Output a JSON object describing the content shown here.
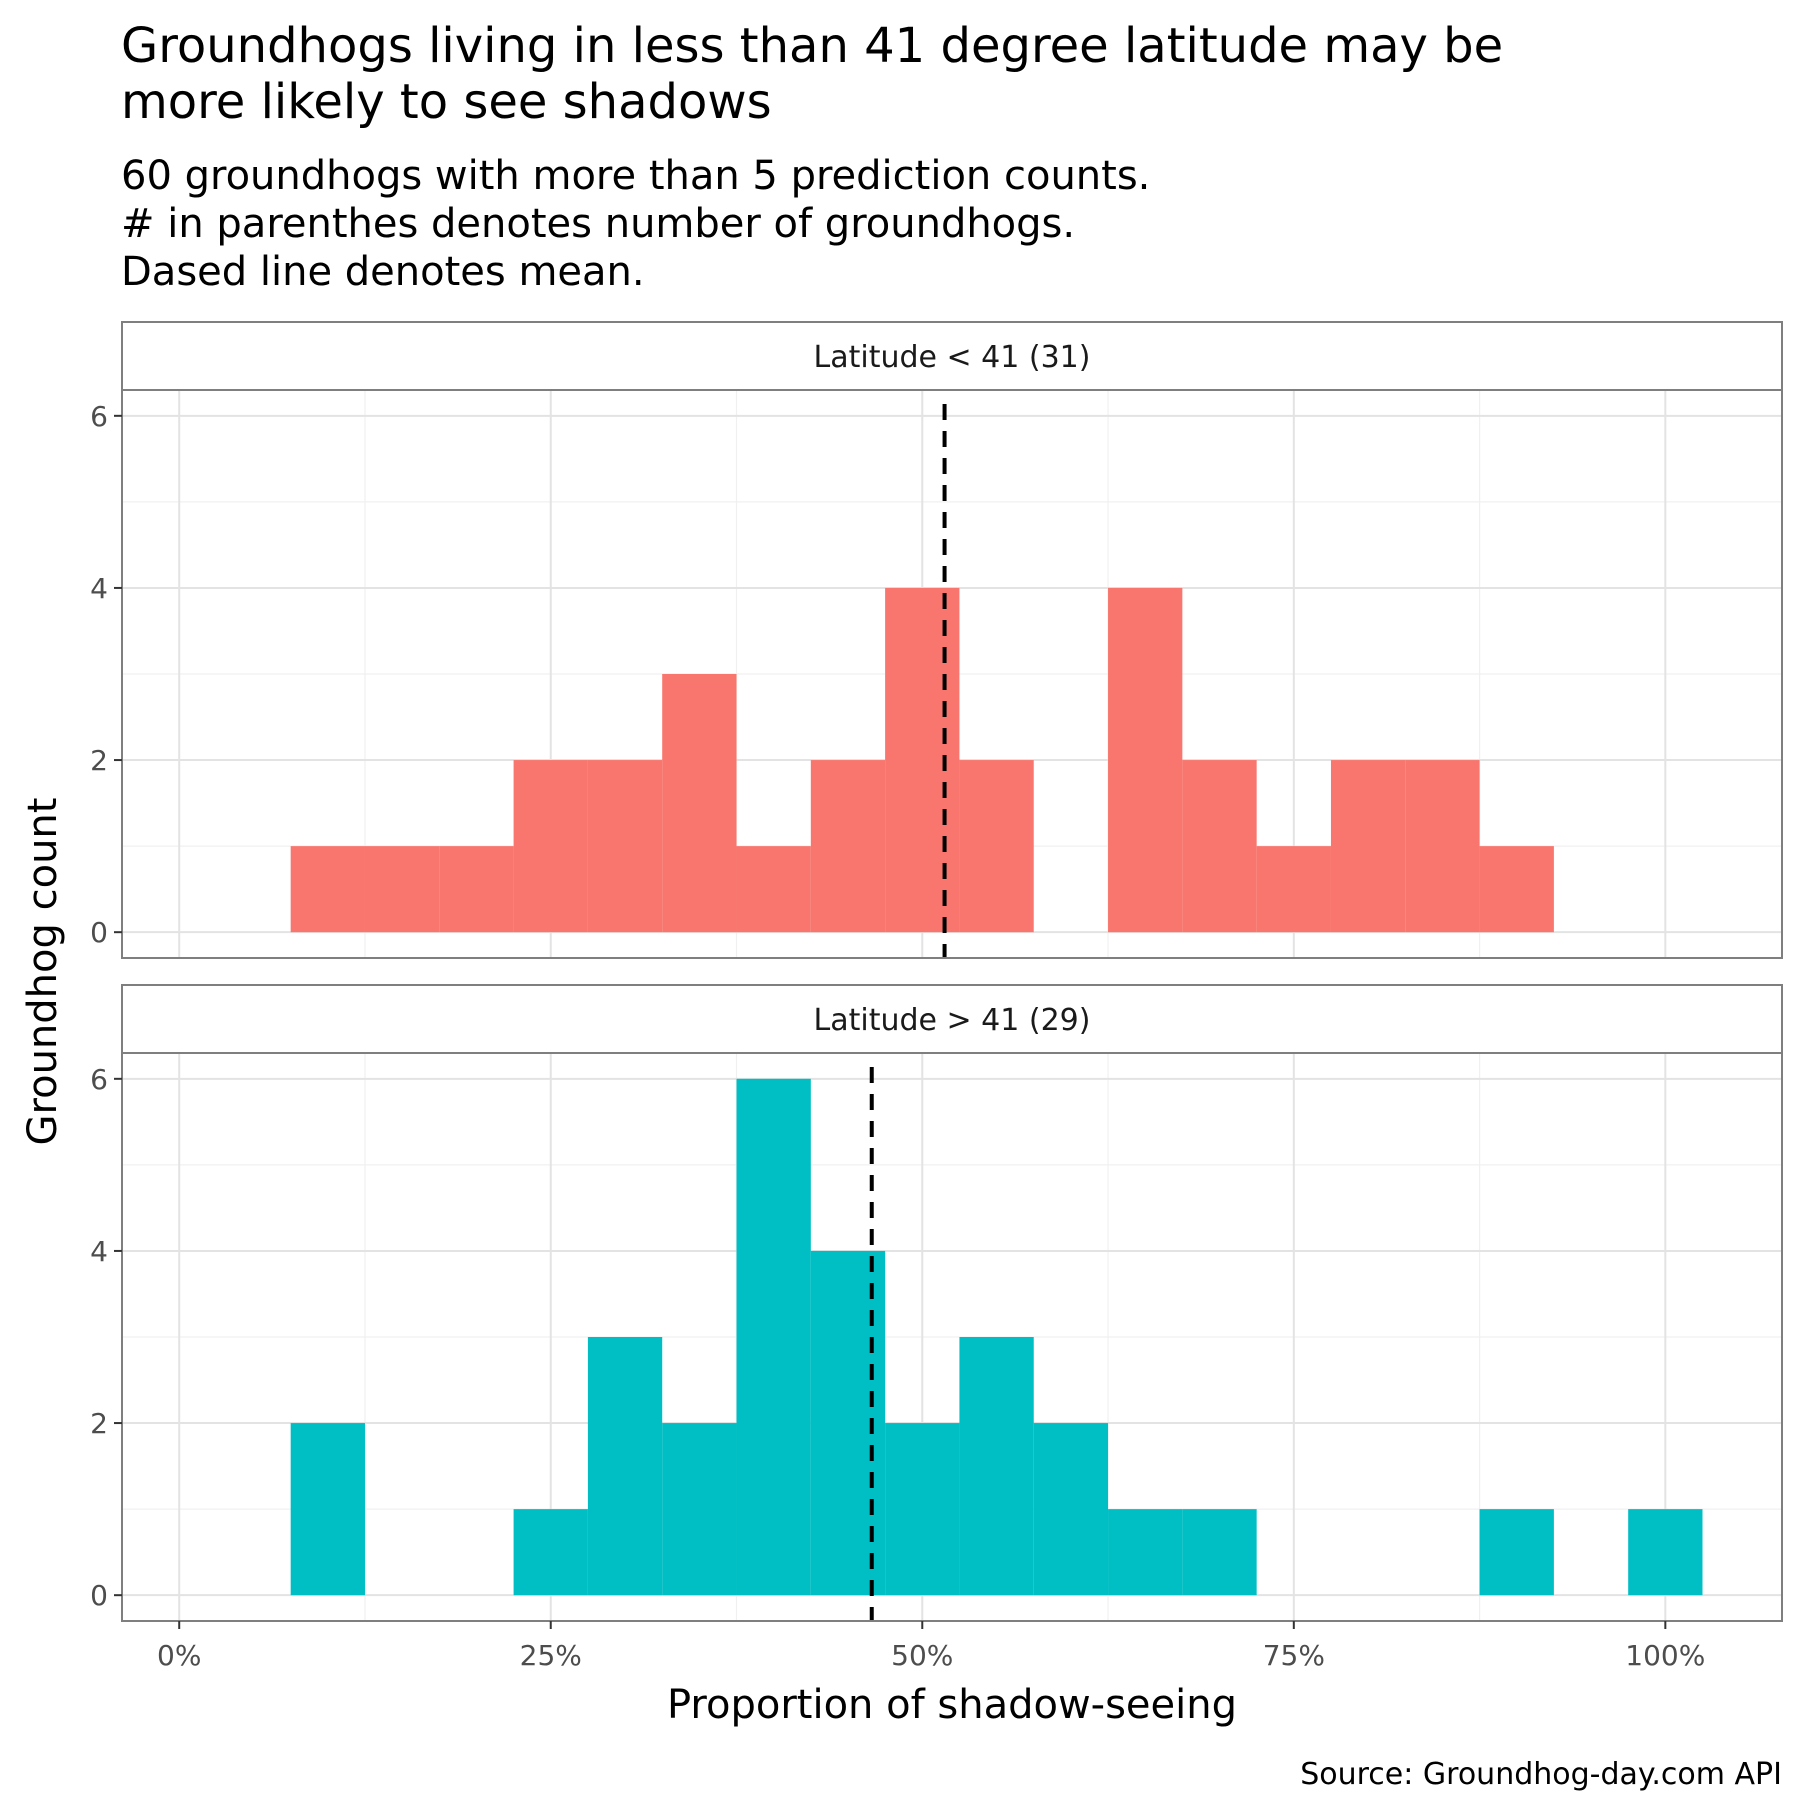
{
  "chart_data": {
    "type": "bar",
    "title_lines": [
      "Groundhogs living in less than 41 degree latitude may be",
      "more likely to see shadows"
    ],
    "subtitle_lines": [
      "60 groundhogs with more than 5 prediction counts.",
      "# in parenthes denotes number of groundhogs.",
      "Dased line denotes mean."
    ],
    "xlabel": "Proportion of shadow-seeing",
    "ylabel": "Groundhog count",
    "caption": "Source: Groundhog-day.com API",
    "xlim": [
      -0.0385,
      1.0785
    ],
    "ylim": [
      -0.3,
      6.3
    ],
    "x_ticks": [
      0,
      0.25,
      0.5,
      0.75,
      1.0
    ],
    "x_tick_labels": [
      "0%",
      "25%",
      "50%",
      "75%",
      "100%"
    ],
    "y_ticks": [
      0,
      2,
      4,
      6
    ],
    "y_tick_labels": [
      "0",
      "2",
      "4",
      "6"
    ],
    "bin_width": 0.05,
    "bin_centers": [
      0.1,
      0.15,
      0.2,
      0.25,
      0.3,
      0.35,
      0.4,
      0.45,
      0.5,
      0.55,
      0.6,
      0.65,
      0.7,
      0.75,
      0.8,
      0.85,
      0.9,
      0.95,
      1.0
    ],
    "grid": true,
    "legend": "none",
    "panels": [
      {
        "strip_label": "Latitude < 41 (31)",
        "color": "#F8766D",
        "mean": 0.515,
        "counts": [
          1,
          1,
          1,
          2,
          2,
          3,
          1,
          2,
          4,
          2,
          0,
          4,
          2,
          1,
          2,
          2,
          1,
          0,
          0
        ]
      },
      {
        "strip_label": "Latitude > 41 (29)",
        "color": "#00BFC4",
        "mean": 0.466,
        "counts": [
          2,
          0,
          0,
          1,
          3,
          2,
          6,
          4,
          2,
          3,
          2,
          1,
          1,
          0,
          0,
          0,
          1,
          0,
          1
        ]
      }
    ]
  }
}
